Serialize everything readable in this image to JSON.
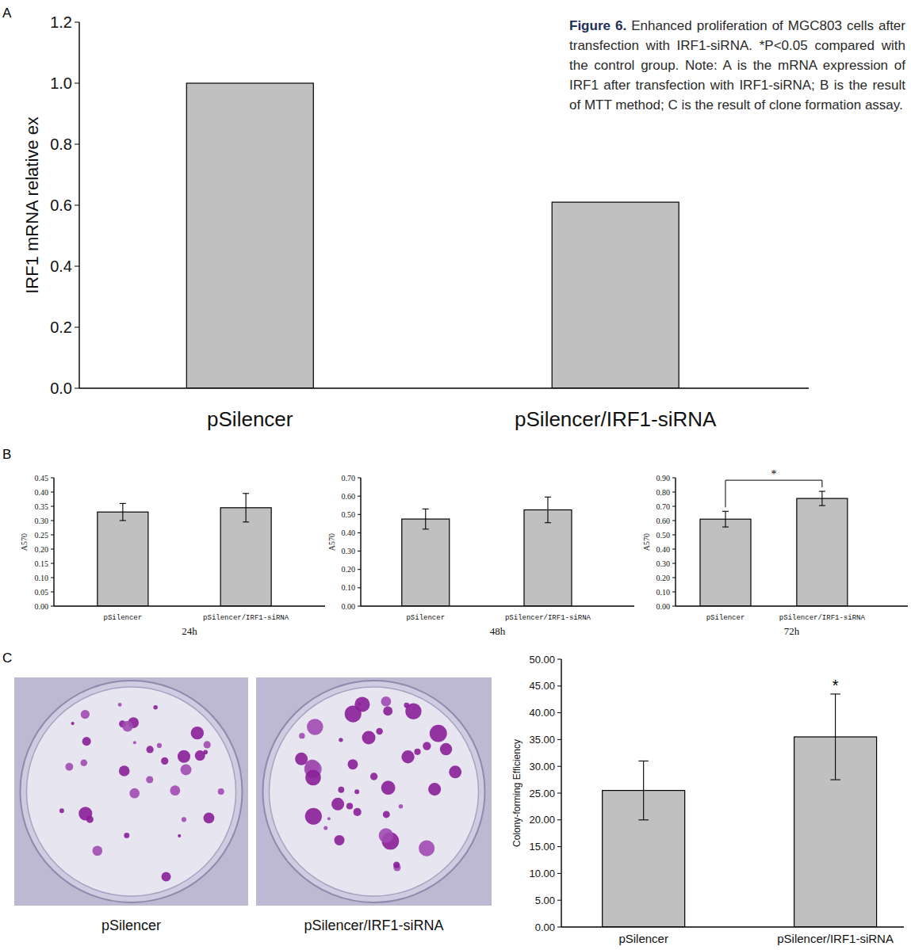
{
  "figure": {
    "caption_label": "Figure 6.",
    "caption": "Enhanced proliferation of MGC803 cells after transfection with IRF1-siRNA. *P<0.05 compared with the control group. Note: A is the mRNA expression of IRF1 after transfection with IRF1-siRNA; B is the result of MTT method; C is the result of clone formation assay."
  },
  "images": {
    "panel": "C",
    "labels": [
      "pSilencer",
      "pSilencer/IRF1-siRNA"
    ]
  },
  "chart_data": [
    {
      "type": "bar",
      "panel": "A",
      "y_label": "IRF1 mRNA relative ex",
      "categories": [
        "pSilencer",
        "pSilencer/IRF1-siRNA"
      ],
      "values": [
        1.0,
        0.61
      ],
      "color": "#c0c0c0",
      "ylim": [
        0,
        1.2
      ],
      "yticks": [
        {
          "value": 0,
          "label": "0.0"
        },
        0.2,
        0.4,
        0.6,
        0.8,
        {
          "value": 1,
          "label": "1.0"
        },
        1.2
      ]
    },
    {
      "type": "bar",
      "panel": "B",
      "y_label": "A570",
      "x_label": "24h",
      "categories": [
        "pSilencer",
        "pSilencer/IRF1-siRNA"
      ],
      "values": [
        0.33,
        0.345
      ],
      "errors": [
        0.03,
        0.05
      ],
      "color": "#c0c0c0",
      "ylim": [
        0,
        0.45
      ],
      "yticks": [
        {
          "value": 0,
          "label": "0.00"
        },
        {
          "value": 0.05,
          "label": "0.05"
        },
        {
          "value": 0.1,
          "label": "0.10"
        },
        {
          "value": 0.15,
          "label": "0.15"
        },
        {
          "value": 0.2,
          "label": "0.20"
        },
        {
          "value": 0.25,
          "label": "0.25"
        },
        {
          "value": 0.3,
          "label": "0.30"
        },
        {
          "value": 0.35,
          "label": "0.35"
        },
        {
          "value": 0.4,
          "label": "0.40"
        },
        {
          "value": 0.45,
          "label": "0.45"
        }
      ]
    },
    {
      "type": "bar",
      "y_label": "A570",
      "x_label": "48h",
      "categories": [
        "pSilencer",
        "pSilencer/IRF1-siRNA"
      ],
      "values": [
        0.475,
        0.525
      ],
      "errors": [
        0.055,
        0.07
      ],
      "color": "#c0c0c0",
      "ylim": [
        0,
        0.7
      ],
      "yticks": [
        {
          "value": 0,
          "label": "0.00"
        },
        {
          "value": 0.1,
          "label": "0.10"
        },
        {
          "value": 0.2,
          "label": "0.20"
        },
        {
          "value": 0.3,
          "label": "0.30"
        },
        {
          "value": 0.4,
          "label": "0.40"
        },
        {
          "value": 0.5,
          "label": "0.50"
        },
        {
          "value": 0.6,
          "label": "0.60"
        },
        {
          "value": 0.7,
          "label": "0.70"
        }
      ]
    },
    {
      "type": "bar",
      "y_label": "A570",
      "x_label": "72h",
      "annotation": "*",
      "categories": [
        "pSilencer",
        "pSilencer/IRF1-siRNA"
      ],
      "values": [
        0.61,
        0.755
      ],
      "errors": [
        0.055,
        0.05
      ],
      "color": "#c0c0c0",
      "ylim": [
        0,
        0.9
      ],
      "yticks": [
        {
          "value": 0,
          "label": "0.00"
        },
        {
          "value": 0.1,
          "label": "0.10"
        },
        {
          "value": 0.2,
          "label": "0.20"
        },
        {
          "value": 0.3,
          "label": "0.30"
        },
        {
          "value": 0.4,
          "label": "0.40"
        },
        {
          "value": 0.5,
          "label": "0.50"
        },
        {
          "value": 0.6,
          "label": "0.60"
        },
        {
          "value": 0.7,
          "label": "0.70"
        },
        {
          "value": 0.8,
          "label": "0.80"
        },
        {
          "value": 0.9,
          "label": "0.90"
        }
      ]
    },
    {
      "type": "bar",
      "y_label": "Colony-forming Efficiency",
      "annotation": "*",
      "categories": [
        "pSilencer",
        "pSilencer/IRF1-siRNA"
      ],
      "values": [
        25.5,
        35.5
      ],
      "errors": [
        5.5,
        8
      ],
      "color": "#c0c0c0",
      "ylim": [
        0,
        50
      ],
      "yticks": [
        {
          "value": 0,
          "label": "0.00"
        },
        {
          "value": 5,
          "label": "5.00"
        },
        {
          "value": 10,
          "label": "10.00"
        },
        {
          "value": 15,
          "label": "15.00"
        },
        {
          "value": 20,
          "label": "20.00"
        },
        {
          "value": 25,
          "label": "25.00"
        },
        {
          "value": 30,
          "label": "30.00"
        },
        {
          "value": 35,
          "label": "35.00"
        },
        {
          "value": 40,
          "label": "40.00"
        },
        {
          "value": 45,
          "label": "45.00"
        },
        {
          "value": 50,
          "label": "50.00"
        }
      ]
    }
  ]
}
